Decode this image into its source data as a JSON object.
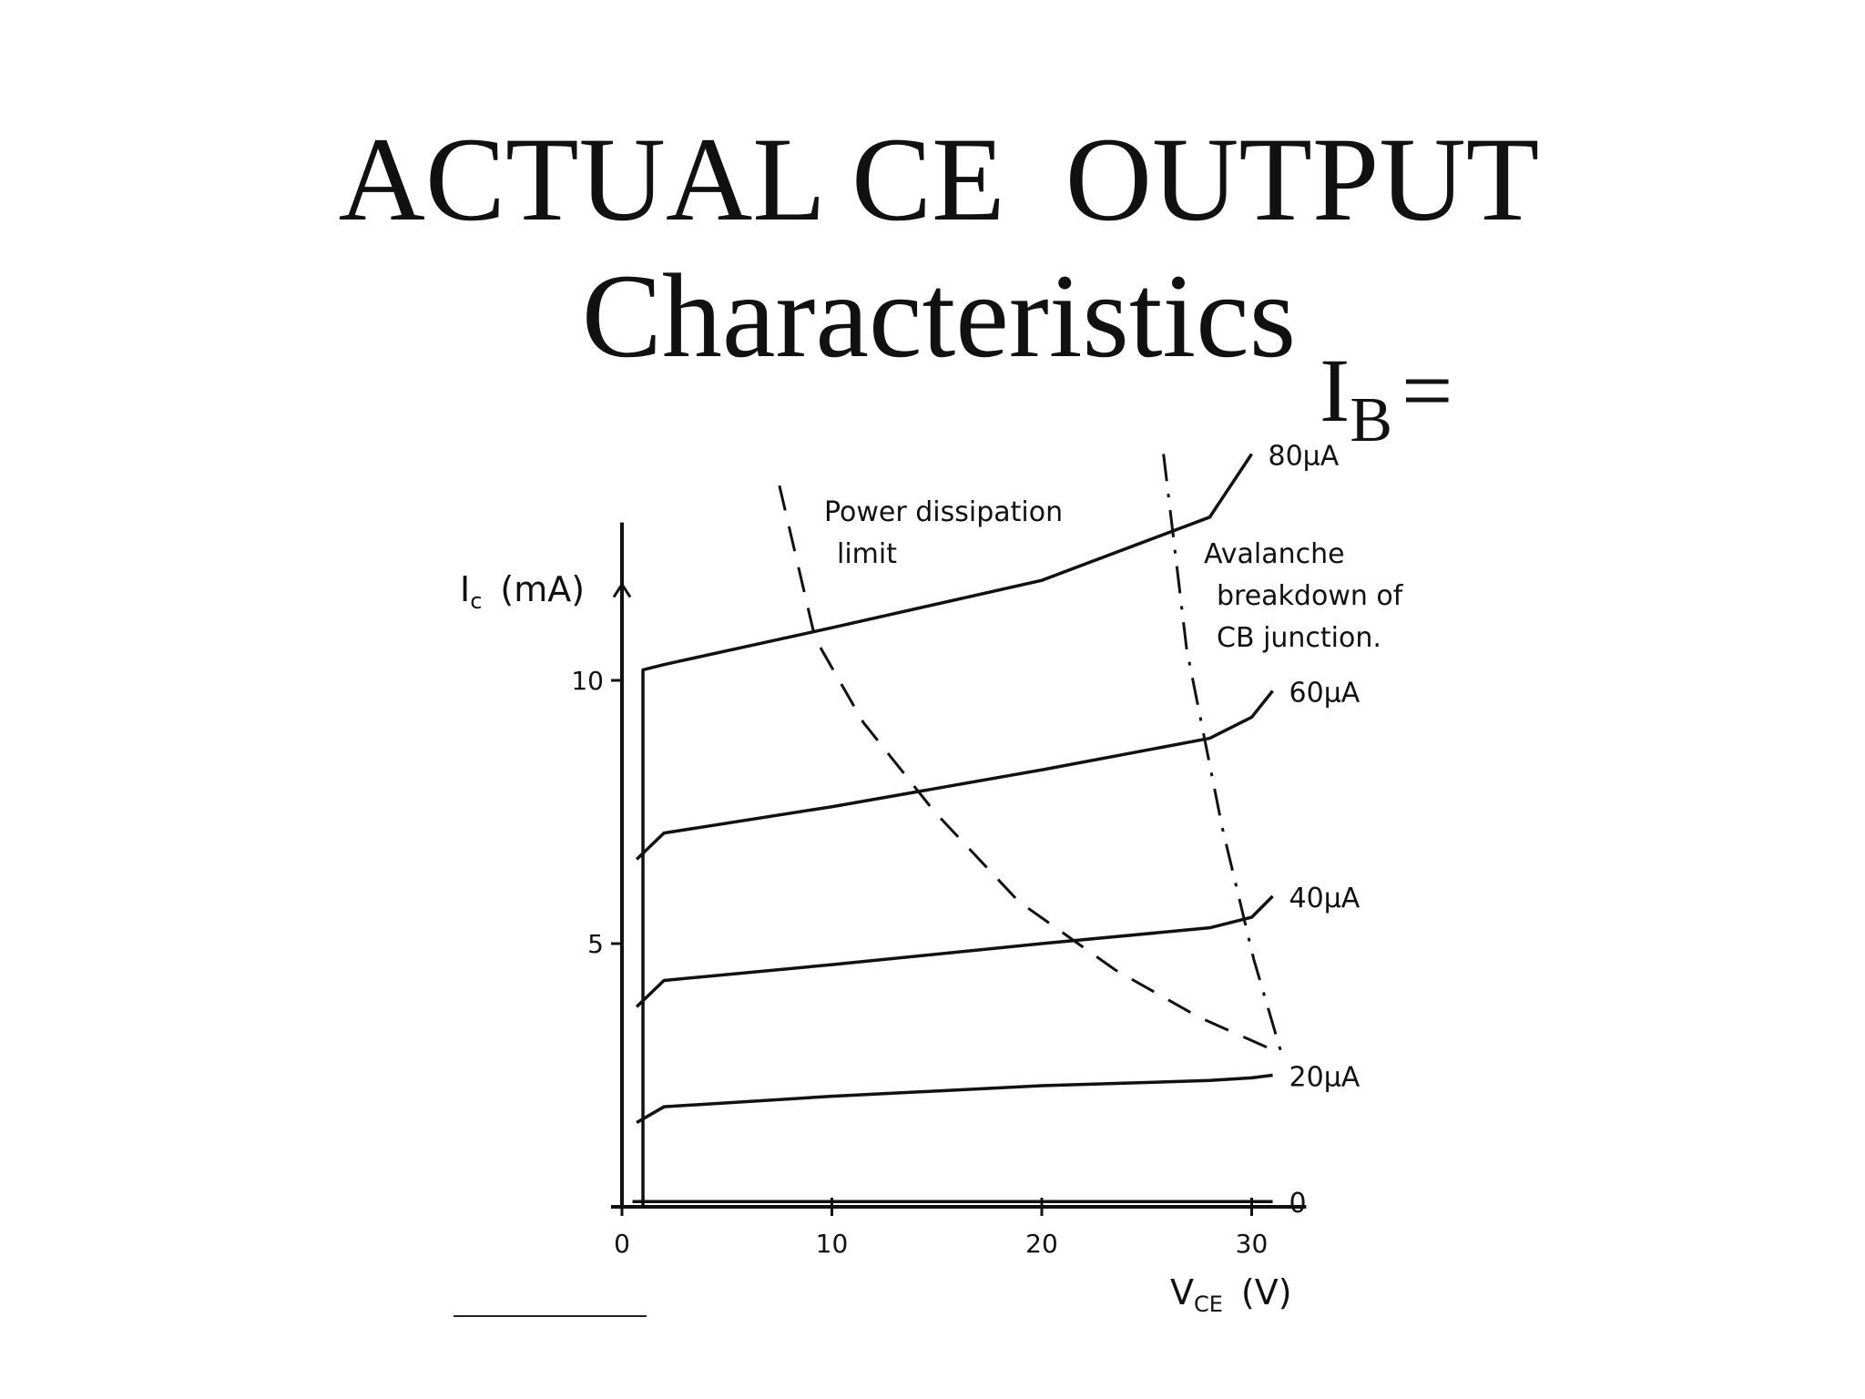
{
  "chart_data": {
    "type": "line",
    "title": "ACTUAL CE  OUTPUT",
    "subtitle": "Characteristics",
    "legend_title": {
      "main": "I",
      "sub": "B",
      "suffix": "="
    },
    "xlabel": {
      "main": "V",
      "sub": "CE",
      "unit": "(V)"
    },
    "ylabel": {
      "main": "I",
      "sub": "c",
      "unit": "(mA)"
    },
    "xlim": [
      0,
      32.6
    ],
    "ylim": [
      0,
      13
    ],
    "xticks": [
      0,
      10,
      20,
      30
    ],
    "yticks": [
      5,
      10
    ],
    "color": "#111111",
    "series": [
      {
        "name": "80μA",
        "x": [
          1,
          1,
          2,
          10,
          20,
          28,
          30
        ],
        "values": [
          0,
          10.2,
          10.3,
          11.0,
          11.9,
          13.1,
          14.3
        ]
      },
      {
        "name": "60μA",
        "x": [
          0.7,
          2,
          10,
          20,
          28,
          30,
          31
        ],
        "values": [
          6.6,
          7.1,
          7.6,
          8.3,
          8.9,
          9.3,
          9.8
        ]
      },
      {
        "name": "40μA",
        "x": [
          0.7,
          2,
          10,
          20,
          28,
          30,
          31
        ],
        "values": [
          3.8,
          4.3,
          4.6,
          5.0,
          5.3,
          5.5,
          5.9
        ]
      },
      {
        "name": "20μA",
        "x": [
          0.7,
          2,
          10,
          20,
          28,
          30,
          31
        ],
        "values": [
          1.6,
          1.9,
          2.1,
          2.3,
          2.4,
          2.45,
          2.5
        ]
      },
      {
        "name": "0",
        "x": [
          0.5,
          31
        ],
        "values": [
          0.1,
          0.1
        ]
      }
    ],
    "annotations": [
      {
        "text": [
          "Power dissipation",
          "limit"
        ],
        "dash": "dashed",
        "x": [
          7.5,
          9.2,
          11.5,
          14.9,
          18.9,
          23.5,
          27.5,
          30.9
        ],
        "values": [
          13.7,
          10.8,
          9.2,
          7.5,
          5.8,
          4.5,
          3.6,
          3.0
        ]
      },
      {
        "text": [
          "Avalanche",
          "breakdown of",
          "CB junction."
        ],
        "dash": "dashdot",
        "x": [
          25.8,
          26.9,
          28.6,
          30.1,
          31.5
        ],
        "values": [
          14.3,
          10.6,
          7.2,
          4.7,
          2.8
        ]
      }
    ]
  }
}
